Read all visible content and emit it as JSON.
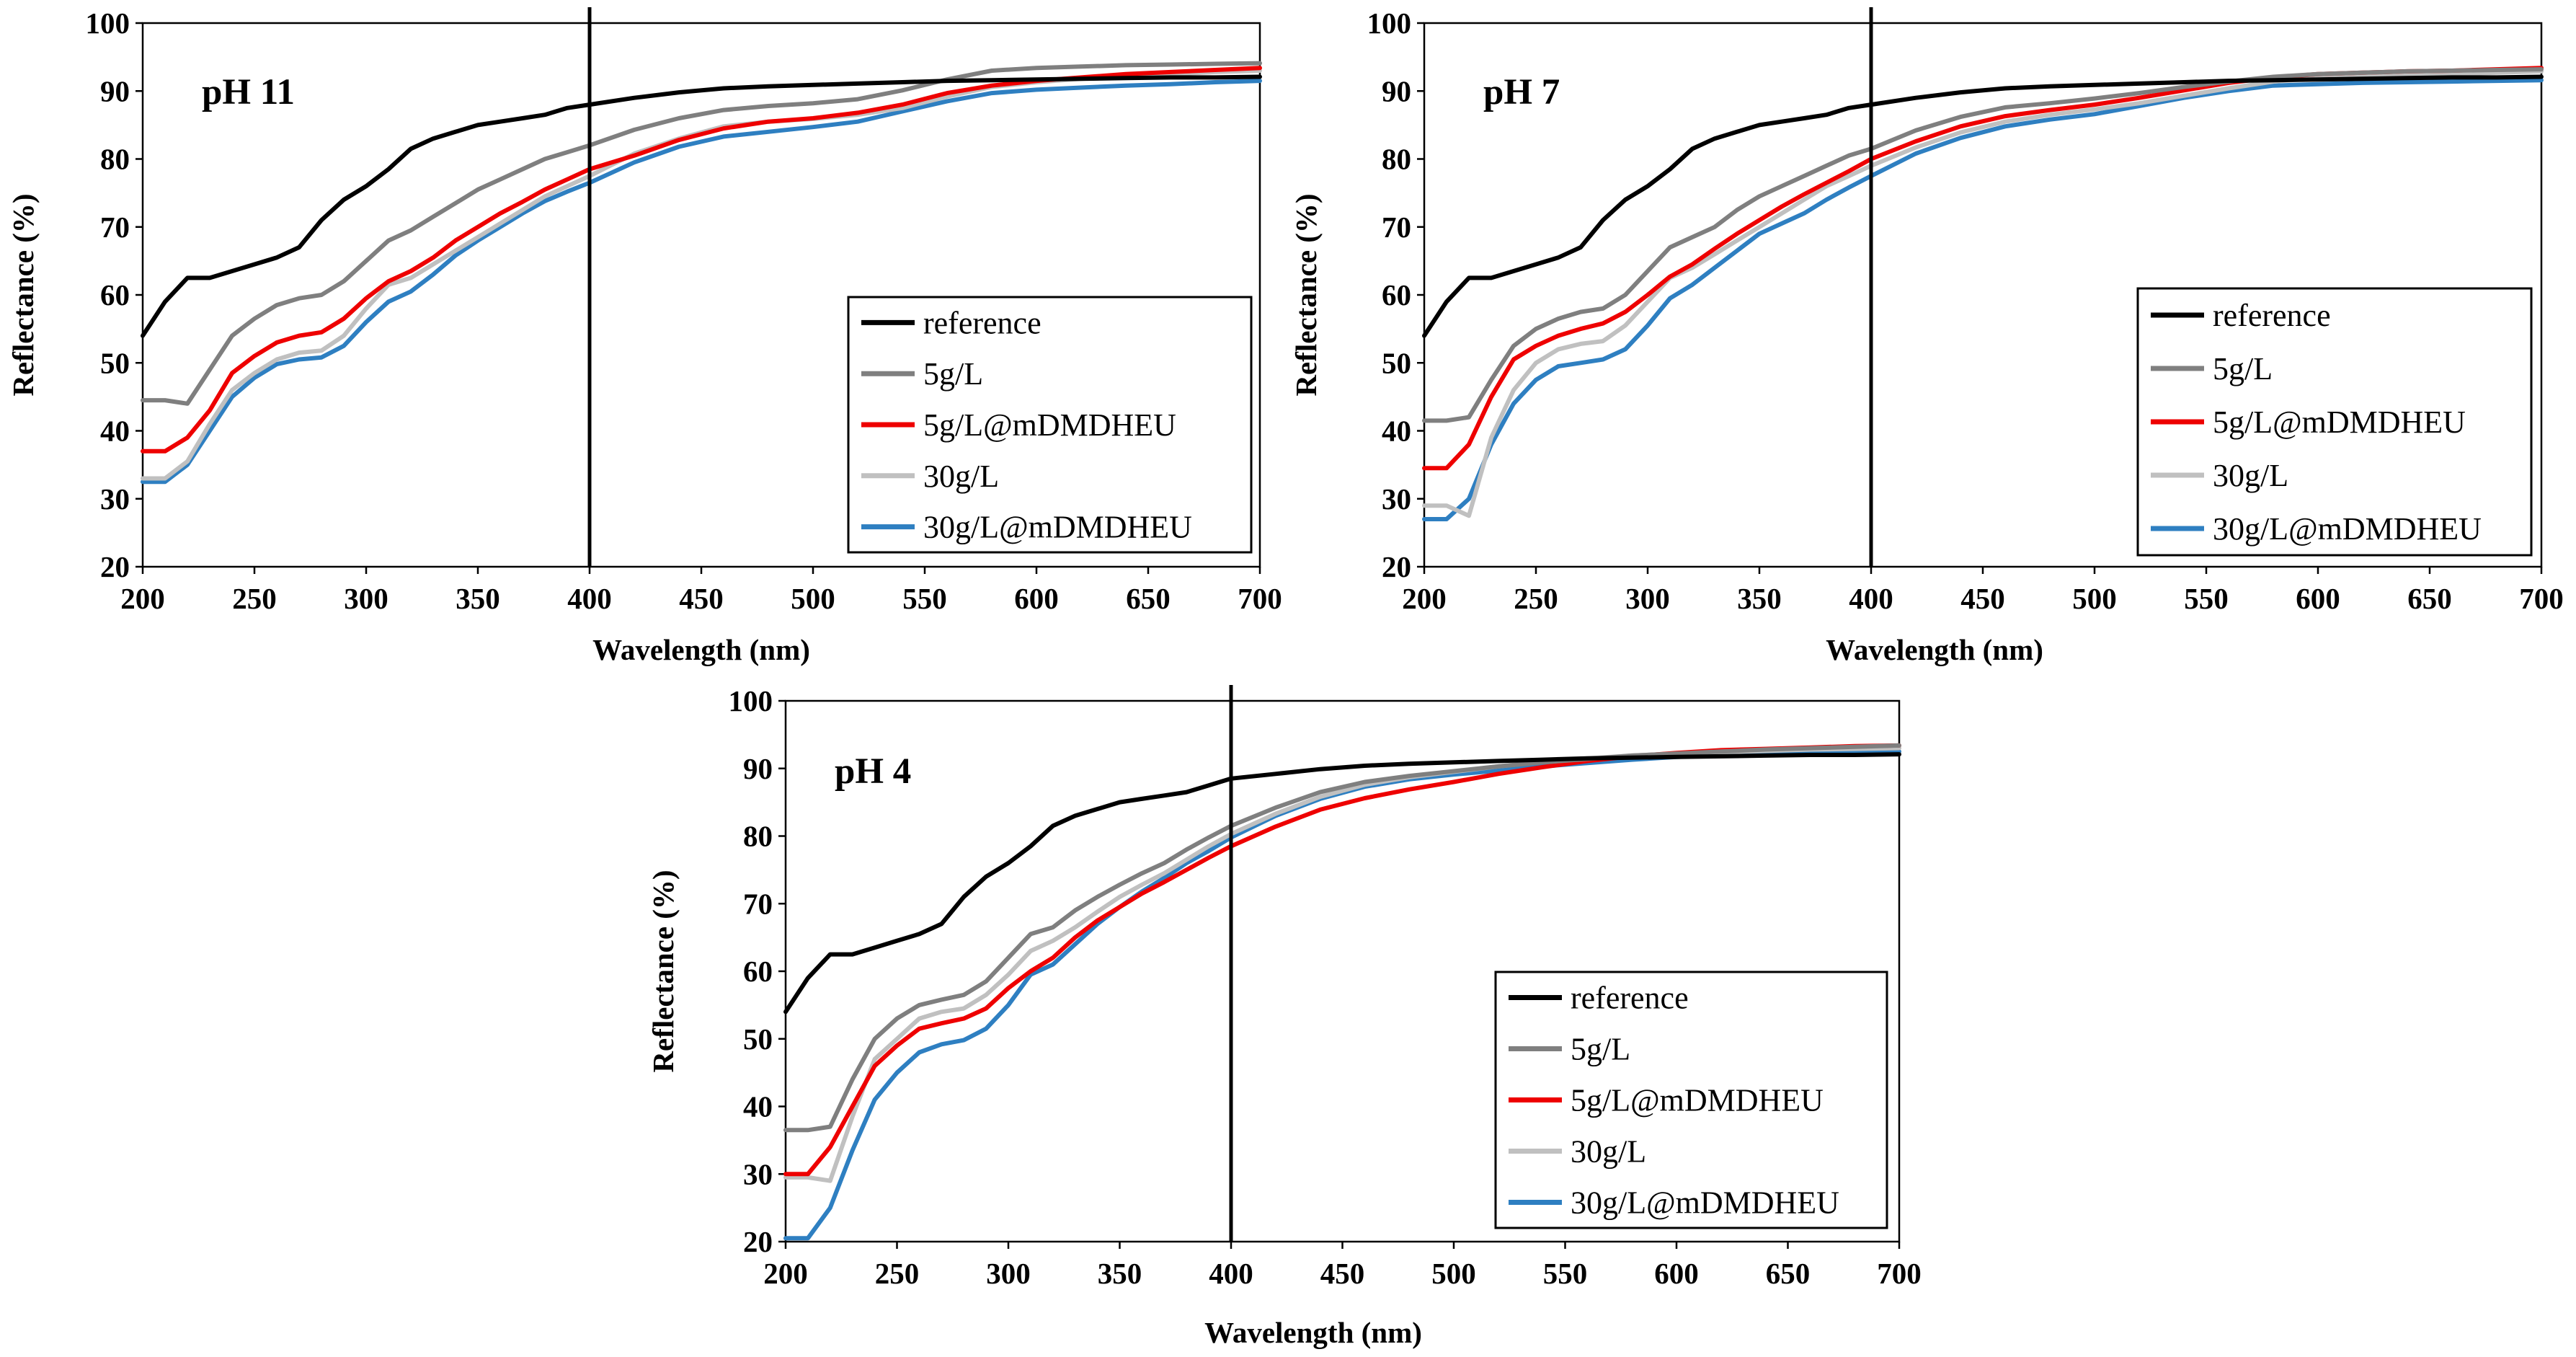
{
  "figure": {
    "colors": {
      "reference": "#000000",
      "5g/L": "#7f7f7f",
      "5g/L@mDMDHEU": "#ee0000",
      "30g/L": "#c0c0c0",
      "30g/L@mDMDHEU": "#2e7fc1"
    }
  },
  "chart_data": [
    {
      "type": "line",
      "title": "pH 11",
      "xlabel": "Wavelength (nm)",
      "ylabel": "Reflectance (%)",
      "xlim": [
        200,
        700
      ],
      "ylim": [
        20,
        100
      ],
      "xticks": [
        "200",
        "250",
        "300",
        "350",
        "400",
        "450",
        "500",
        "550",
        "600",
        "650",
        "700"
      ],
      "yticks": [
        "20",
        "30",
        "40",
        "50",
        "60",
        "70",
        "80",
        "90",
        "100"
      ],
      "marker_line_x": 400,
      "x": [
        200,
        210,
        220,
        230,
        240,
        250,
        260,
        270,
        280,
        290,
        300,
        310,
        320,
        330,
        340,
        350,
        360,
        370,
        380,
        390,
        400,
        420,
        440,
        460,
        480,
        500,
        520,
        540,
        560,
        580,
        600,
        620,
        640,
        660,
        680,
        700
      ],
      "series": [
        {
          "name": "reference",
          "values": [
            54,
            59,
            62.5,
            62.5,
            63.5,
            64.5,
            65.5,
            67,
            71,
            74,
            76,
            78.5,
            81.5,
            83,
            84,
            85,
            85.5,
            86,
            86.5,
            87.5,
            88,
            89,
            89.8,
            90.4,
            90.7,
            90.9,
            91.1,
            91.3,
            91.5,
            91.6,
            91.7,
            91.8,
            91.9,
            92,
            92,
            92.1
          ]
        },
        {
          "name": "5g/L",
          "values": [
            44.5,
            44.5,
            44,
            49,
            54,
            56.5,
            58.5,
            59.5,
            60,
            62,
            65,
            68,
            69.5,
            71.5,
            73.5,
            75.5,
            77,
            78.5,
            80,
            81,
            82,
            84.3,
            86,
            87.2,
            87.8,
            88.2,
            88.8,
            90.1,
            91.7,
            93,
            93.4,
            93.6,
            93.8,
            93.9,
            94,
            94.1
          ]
        },
        {
          "name": "5g/L@mDMDHEU",
          "values": [
            37,
            37,
            39,
            43,
            48.5,
            51,
            53,
            54,
            54.5,
            56.5,
            59.5,
            62,
            63.5,
            65.5,
            68,
            70,
            72,
            73.7,
            75.5,
            77,
            78.5,
            80.5,
            82.8,
            84.5,
            85.5,
            86,
            86.8,
            88,
            89.7,
            90.8,
            91.5,
            92,
            92.5,
            92.8,
            93.1,
            93.4
          ]
        },
        {
          "name": "30g/L",
          "values": [
            33,
            33,
            35.5,
            41,
            46,
            48.5,
            50.5,
            51.5,
            51.8,
            54,
            58,
            61.5,
            62.5,
            64.5,
            66.5,
            68.5,
            70.5,
            72.5,
            74.5,
            76,
            77.5,
            80.8,
            83,
            84.8,
            85.5,
            85.9,
            86.5,
            87.5,
            89.2,
            90.6,
            91.3,
            91.8,
            92.2,
            92.5,
            92.8,
            93
          ]
        },
        {
          "name": "30g/L@mDMDHEU",
          "values": [
            32.5,
            32.5,
            35,
            40,
            45,
            47.8,
            49.8,
            50.5,
            50.8,
            52.5,
            56,
            59,
            60.5,
            63,
            65.8,
            68,
            70,
            72,
            73.8,
            75.2,
            76.5,
            79.5,
            81.8,
            83.3,
            84,
            84.7,
            85.5,
            87,
            88.5,
            89.7,
            90.2,
            90.5,
            90.8,
            91,
            91.3,
            91.5
          ]
        }
      ]
    },
    {
      "type": "line",
      "title": "pH 7",
      "xlabel": "Wavelength (nm)",
      "ylabel": "Reflectance (%)",
      "xlim": [
        200,
        700
      ],
      "ylim": [
        20,
        100
      ],
      "xticks": [
        "200",
        "250",
        "300",
        "350",
        "400",
        "450",
        "500",
        "550",
        "600",
        "650",
        "700"
      ],
      "yticks": [
        "20",
        "30",
        "40",
        "50",
        "60",
        "70",
        "80",
        "90",
        "100"
      ],
      "marker_line_x": 400,
      "x": [
        200,
        210,
        220,
        230,
        240,
        250,
        260,
        270,
        280,
        290,
        300,
        310,
        320,
        330,
        340,
        350,
        360,
        370,
        380,
        390,
        400,
        420,
        440,
        460,
        480,
        500,
        520,
        540,
        560,
        580,
        600,
        620,
        640,
        660,
        680,
        700
      ],
      "series": [
        {
          "name": "reference",
          "values": [
            54,
            59,
            62.5,
            62.5,
            63.5,
            64.5,
            65.5,
            67,
            71,
            74,
            76,
            78.5,
            81.5,
            83,
            84,
            85,
            85.5,
            86,
            86.5,
            87.5,
            88,
            89,
            89.8,
            90.4,
            90.7,
            90.9,
            91.1,
            91.3,
            91.5,
            91.6,
            91.7,
            91.8,
            91.9,
            92,
            92,
            92.1
          ]
        },
        {
          "name": "5g/L",
          "values": [
            41.5,
            41.5,
            42,
            47.5,
            52.5,
            55,
            56.5,
            57.5,
            58,
            60,
            63.5,
            67,
            68.5,
            70,
            72.5,
            74.5,
            76,
            77.5,
            79,
            80.5,
            81.5,
            84.2,
            86.2,
            87.6,
            88.2,
            88.9,
            89.7,
            90.6,
            91.4,
            92.1,
            92.5,
            92.7,
            92.9,
            93,
            93.1,
            93.2
          ]
        },
        {
          "name": "5g/L@mDMDHEU",
          "values": [
            34.5,
            34.5,
            38,
            45,
            50.5,
            52.5,
            54,
            55,
            55.8,
            57.5,
            60,
            62.7,
            64.5,
            66.8,
            69,
            71,
            73,
            74.8,
            76.5,
            78.2,
            80,
            82.6,
            84.8,
            86.3,
            87.2,
            88,
            89,
            90.1,
            91.2,
            92,
            92.5,
            92.7,
            92.9,
            93,
            93.2,
            93.4
          ]
        },
        {
          "name": "30g/L",
          "values": [
            29,
            29,
            27.5,
            39,
            46,
            50,
            52,
            52.8,
            53.2,
            55.5,
            59,
            62.5,
            64,
            66,
            68,
            70,
            72,
            74,
            76,
            77.5,
            79,
            81.7,
            83.9,
            85.5,
            86.5,
            87.3,
            88.2,
            89.3,
            90.4,
            91.4,
            91.9,
            92.1,
            92.3,
            92.5,
            92.7,
            92.9
          ]
        },
        {
          "name": "30g/L@mDMDHEU",
          "values": [
            27,
            27,
            30,
            38,
            44,
            47.5,
            49.5,
            50,
            50.5,
            52,
            55.5,
            59.5,
            61.5,
            64,
            66.5,
            69,
            70.5,
            72,
            74,
            75.8,
            77.5,
            80.8,
            83.1,
            84.8,
            85.8,
            86.6,
            87.8,
            89,
            90,
            90.8,
            91,
            91.2,
            91.3,
            91.4,
            91.5,
            91.6
          ]
        }
      ]
    },
    {
      "type": "line",
      "title": "pH 4",
      "xlabel": "Wavelength (nm)",
      "ylabel": "Reflectance (%)",
      "xlim": [
        200,
        700
      ],
      "ylim": [
        20,
        100
      ],
      "xticks": [
        "200",
        "250",
        "300",
        "350",
        "400",
        "450",
        "500",
        "550",
        "600",
        "650",
        "700"
      ],
      "yticks": [
        "20",
        "30",
        "40",
        "50",
        "60",
        "70",
        "80",
        "90",
        "100"
      ],
      "marker_line_x": 400,
      "x": [
        200,
        210,
        220,
        230,
        240,
        250,
        260,
        270,
        280,
        290,
        300,
        310,
        320,
        330,
        340,
        350,
        360,
        370,
        380,
        390,
        400,
        420,
        440,
        460,
        480,
        500,
        520,
        540,
        560,
        580,
        600,
        620,
        640,
        660,
        680,
        700
      ],
      "series": [
        {
          "name": "reference",
          "values": [
            54,
            59,
            62.5,
            62.5,
            63.5,
            64.5,
            65.5,
            67,
            71,
            74,
            76,
            78.5,
            81.5,
            83,
            84,
            85,
            85.5,
            86,
            86.5,
            87.5,
            88.5,
            89.2,
            89.9,
            90.4,
            90.7,
            90.9,
            91.1,
            91.3,
            91.5,
            91.6,
            91.7,
            91.8,
            91.9,
            92,
            92,
            92.1
          ]
        },
        {
          "name": "5g/L",
          "values": [
            36.5,
            36.5,
            37,
            44,
            50,
            53,
            55,
            55.8,
            56.5,
            58.5,
            62,
            65.5,
            66.5,
            69,
            71,
            72.8,
            74.5,
            76,
            78,
            79.8,
            81.5,
            84.2,
            86.5,
            88,
            88.9,
            89.6,
            90.3,
            90.9,
            91.4,
            91.9,
            92.2,
            92.5,
            92.8,
            93,
            93.2,
            93.4
          ]
        },
        {
          "name": "5g/L@mDMDHEU",
          "values": [
            30,
            30,
            34,
            40,
            46,
            49,
            51.5,
            52.3,
            53,
            54.5,
            57.5,
            60,
            62,
            65,
            67.5,
            69.5,
            71.5,
            73.2,
            75,
            76.8,
            78.5,
            81.4,
            83.9,
            85.6,
            86.9,
            88,
            89.2,
            90.2,
            91.1,
            91.8,
            92.3,
            92.7,
            92.9,
            93.1,
            93.3,
            93.4
          ]
        },
        {
          "name": "30g/L",
          "values": [
            29.5,
            29.5,
            29,
            38.5,
            47,
            50,
            53,
            54,
            54.5,
            56.5,
            59.5,
            63,
            64.5,
            66.5,
            68.8,
            71,
            72.8,
            74.5,
            76.5,
            78.5,
            80.3,
            83.3,
            85.8,
            87.6,
            88.7,
            89.5,
            90.3,
            91,
            91.5,
            91.9,
            92.2,
            92.4,
            92.6,
            92.8,
            92.9,
            93
          ]
        },
        {
          "name": "30g/L@mDMDHEU",
          "values": [
            20.5,
            20.5,
            25,
            33.5,
            41,
            45,
            48,
            49.2,
            49.8,
            51.5,
            55,
            59.5,
            61,
            64,
            67,
            69.5,
            71.8,
            73.8,
            76,
            77.8,
            79.8,
            83,
            85.5,
            87.3,
            88.4,
            89.1,
            89.7,
            90.3,
            90.8,
            91.3,
            91.7,
            92,
            92.2,
            92.3,
            92.4,
            92.5
          ]
        }
      ]
    }
  ]
}
